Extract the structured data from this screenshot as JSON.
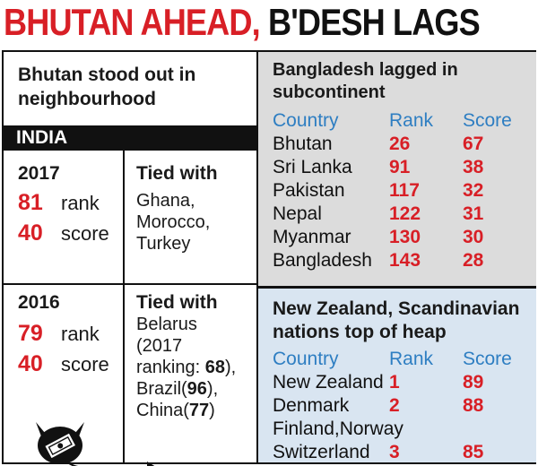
{
  "headline": {
    "part1": "BHUTAN AHEAD,",
    "part2": " B'DESH LAGS"
  },
  "left": {
    "heading": "Bhutan stood out in neighbourhood",
    "section_label": "INDIA",
    "y2017": {
      "year": "2017",
      "rank_value": "81",
      "rank_label": "rank",
      "score_value": "40",
      "score_label": "score",
      "tied_title": "Tied with",
      "tied_text": "Ghana, Morocco, Turkey"
    },
    "y2016": {
      "year": "2016",
      "rank_value": "79",
      "rank_label": "rank",
      "score_value": "40",
      "score_label": "score",
      "tied_title": "Tied with",
      "tied_line1": "Belarus",
      "tied_line2": "(2017",
      "tied_line3a": "ranking: ",
      "tied_line3b": "68",
      "tied_line3c": "),",
      "tied_line4a": "Brazil(",
      "tied_line4b": "96",
      "tied_line4c": "),",
      "tied_line5a": "China(",
      "tied_line5b": "77",
      "tied_line5c": ")"
    }
  },
  "subcontinent": {
    "title": "Bangladesh lagged in subcontinent",
    "columns": [
      "Country",
      "Rank",
      "Score"
    ],
    "rows": [
      {
        "country": "Bhutan",
        "rank": "26",
        "score": "67"
      },
      {
        "country": "Sri Lanka",
        "rank": "91",
        "score": "38"
      },
      {
        "country": "Pakistan",
        "rank": "117",
        "score": "32"
      },
      {
        "country": "Nepal",
        "rank": "122",
        "score": "31"
      },
      {
        "country": "Myanmar",
        "rank": "130",
        "score": "30"
      },
      {
        "country": "Bangladesh",
        "rank": "143",
        "score": "28"
      }
    ]
  },
  "top": {
    "title": "New Zealand, Scandinavian nations top of heap",
    "columns": [
      "Country",
      "Rank",
      "Score"
    ],
    "rows": [
      {
        "country": "New Zealand",
        "rank": "1",
        "score": "89"
      },
      {
        "country": "Denmark",
        "rank": "2",
        "score": "88"
      },
      {
        "country": "Finland,Norway",
        "rank": "",
        "score": ""
      },
      {
        "country": "Switzerland",
        "rank": "3",
        "score": "85"
      }
    ]
  },
  "colors": {
    "accent_red": "#d81f26",
    "header_blue": "#2e7ec2",
    "panel_gray": "#dcdcdc",
    "panel_blue": "#d9e5f1"
  },
  "icons": [
    "devil-money-icon"
  ]
}
